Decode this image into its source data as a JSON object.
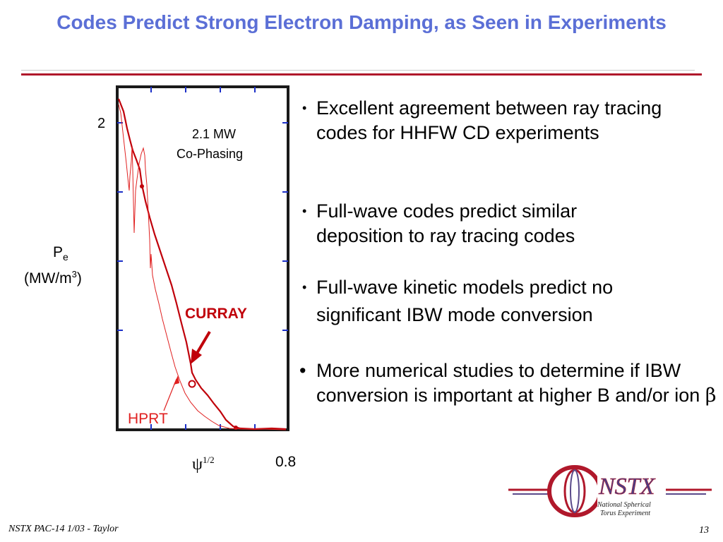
{
  "slide": {
    "title": "Codes Predict Strong Electron Damping, as Seen in Experiments",
    "footer_left": "NSTX PAC-14 1/03 - Taylor",
    "page_number": "13"
  },
  "bullets": [
    {
      "text": "Excellent agreement between ray tracing codes for HHFW CD experiments"
    },
    {
      "line1": "Full-wave codes predict similar",
      "line2": "deposition to ray tracing codes"
    },
    {
      "line1": "Full-wave kinetic models predict no",
      "line2": "significant IBW mode conversion"
    },
    {
      "text": "More numerical studies to determine if IBW conversion is important at higher B and/or ion",
      "symbol": "β"
    }
  ],
  "plot": {
    "y_tick": "2",
    "x_tick_end": "0.8",
    "x_label": "ψ",
    "x_label_sup": "1/2",
    "y_label_line1": "P",
    "y_label_sub": "e",
    "y_label_line2": "(MW/m",
    "y_label_sup": "3",
    "y_label_close": ")",
    "annotation_line1": "2.1 MW",
    "annotation_line2": "Co-Phasing",
    "label_curray": "CURRAY",
    "label_hprt": "HPRT",
    "missing_glyph_1": "",
    "missing_glyph_2": "",
    "colors": {
      "frame": "#1a1a1a",
      "curray": "#c0000a",
      "hprt": "#e02020",
      "ticks": "#1b2fc8"
    }
  },
  "logo": {
    "name": "NSTX",
    "line1": "National Spherical",
    "line2": "Torus Experiment"
  }
}
